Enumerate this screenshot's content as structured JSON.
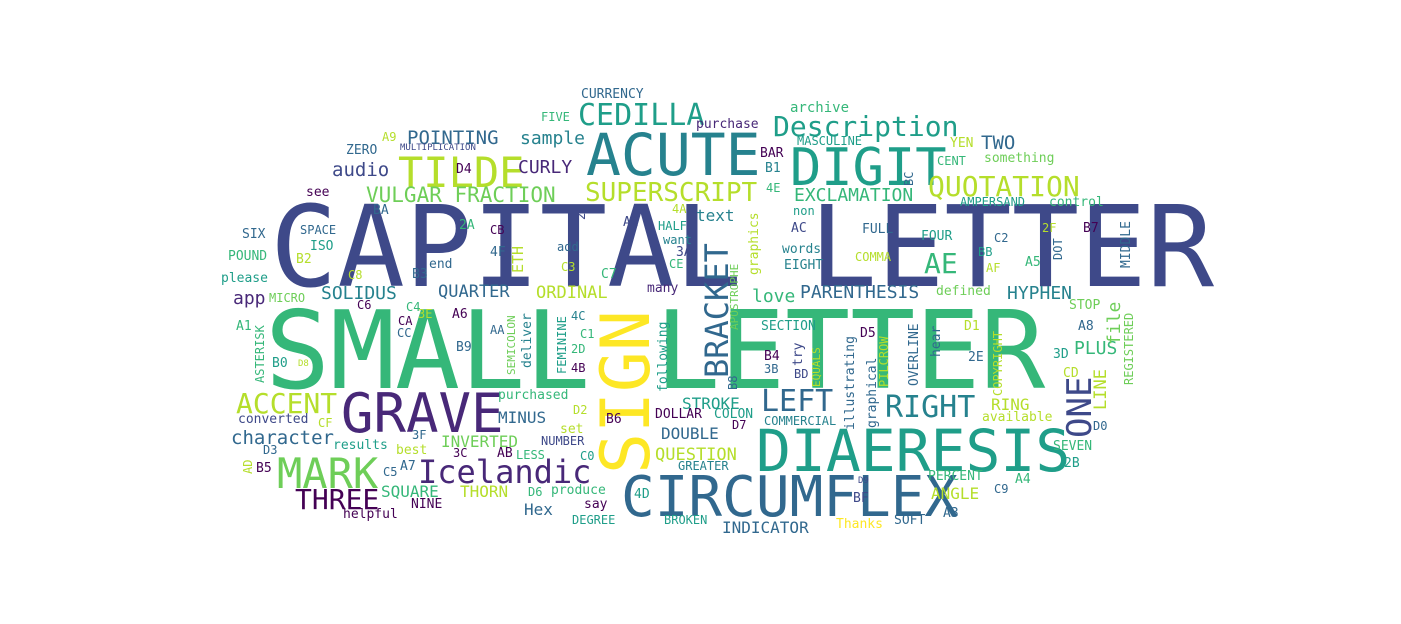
{
  "palette": {
    "dark_purple": "#440154",
    "purple": "#482878",
    "indigo": "#3e4989",
    "blue": "#31688e",
    "teal_blue": "#26828e",
    "teal": "#1f9e89",
    "green": "#35b779",
    "light_green": "#6ece58",
    "lime": "#b5de2b",
    "yellow": "#fde725"
  },
  "words": [
    {
      "text": "CAPITAL LETTER",
      "color": "#3e4989"
    },
    {
      "text": "SMALL LETTER",
      "color": "#35b779"
    },
    {
      "text": "SIGN",
      "color": "#fde725"
    },
    {
      "text": "ACUTE",
      "color": "#26828e"
    },
    {
      "text": "DIGIT",
      "color": "#1f9e89"
    },
    {
      "text": "DIAERESIS",
      "color": "#1f9e89"
    },
    {
      "text": "CIRCUMFLEX",
      "color": "#31688e"
    },
    {
      "text": "GRAVE",
      "color": "#482878"
    },
    {
      "text": "TILDE",
      "color": "#b5de2b"
    },
    {
      "text": "MARK",
      "color": "#6ece58"
    },
    {
      "text": "Icelandic",
      "color": "#482878"
    },
    {
      "text": "BRACKET",
      "color": "#31688e"
    },
    {
      "text": "CEDILLA",
      "color": "#1f9e89"
    },
    {
      "text": "Description",
      "color": "#1f9e89"
    },
    {
      "text": "QUOTATION",
      "color": "#b5de2b"
    },
    {
      "text": "SUPERSCRIPT",
      "color": "#b5de2b"
    },
    {
      "text": "ONE",
      "color": "#3e4989"
    },
    {
      "text": "RIGHT",
      "color": "#26828e"
    },
    {
      "text": "LEFT",
      "color": "#31688e"
    },
    {
      "text": "ACCENT",
      "color": "#b5de2b"
    },
    {
      "text": "THREE",
      "color": "#440154"
    },
    {
      "text": "VULGAR FRACTION",
      "color": "#6ece58"
    },
    {
      "text": "POINTING",
      "color": "#31688e"
    },
    {
      "text": "AE",
      "color": "#35b779"
    },
    {
      "text": "sample",
      "color": "#26828e"
    },
    {
      "text": "CURLY",
      "color": "#482878"
    },
    {
      "text": "audio",
      "color": "#3e4989"
    },
    {
      "text": "TWO",
      "color": "#31688e"
    },
    {
      "text": "EXCLAMATION",
      "color": "#35b779"
    },
    {
      "text": "character",
      "color": "#31688e"
    },
    {
      "text": "PARENTHESIS",
      "color": "#31688e"
    },
    {
      "text": "HYPHEN",
      "color": "#26828e"
    },
    {
      "text": "SOLIDUS",
      "color": "#26828e"
    },
    {
      "text": "QUARTER",
      "color": "#31688e"
    },
    {
      "text": "ORDINAL",
      "color": "#b5de2b"
    },
    {
      "text": "love",
      "color": "#35b779"
    },
    {
      "text": "app",
      "color": "#482878"
    },
    {
      "text": "PLUS",
      "color": "#35b779"
    },
    {
      "text": "file",
      "color": "#6ece58"
    },
    {
      "text": "LINE",
      "color": "#b5de2b"
    },
    {
      "text": "STROKE",
      "color": "#1f9e89"
    },
    {
      "text": "DOUBLE",
      "color": "#31688e"
    },
    {
      "text": "MINUS",
      "color": "#31688e"
    },
    {
      "text": "INVERTED",
      "color": "#6ece58"
    },
    {
      "text": "QUESTION",
      "color": "#b5de2b"
    },
    {
      "text": "SQUARE",
      "color": "#35b779"
    },
    {
      "text": "THORN",
      "color": "#b5de2b"
    },
    {
      "text": "ANGLE",
      "color": "#b5de2b"
    },
    {
      "text": "RING",
      "color": "#b5de2b"
    },
    {
      "text": "Hex",
      "color": "#31688e"
    },
    {
      "text": "INDICATOR",
      "color": "#31688e"
    },
    {
      "text": "ETH",
      "color": "#b5de2b"
    },
    {
      "text": "text",
      "color": "#26828e"
    },
    {
      "text": "CURRENCY",
      "color": "#31688e"
    },
    {
      "text": "archive",
      "color": "#35b779"
    },
    {
      "text": "purchase",
      "color": "#482878"
    },
    {
      "text": "MASCULINE",
      "color": "#1f9e89"
    },
    {
      "text": "FIVE",
      "color": "#35b779"
    },
    {
      "text": "ZERO",
      "color": "#31688e"
    },
    {
      "text": "MULTIPLICATION",
      "color": "#3e4989"
    },
    {
      "text": "A9",
      "color": "#b5de2b"
    },
    {
      "text": "D4",
      "color": "#440154"
    },
    {
      "text": "BAR",
      "color": "#440154"
    },
    {
      "text": "B1",
      "color": "#26828e"
    },
    {
      "text": "4E",
      "color": "#35b779"
    },
    {
      "text": "YEN",
      "color": "#b5de2b"
    },
    {
      "text": "CENT",
      "color": "#35b779"
    },
    {
      "text": "something",
      "color": "#6ece58"
    },
    {
      "text": "see",
      "color": "#440154"
    },
    {
      "text": "BA",
      "color": "#31688e"
    },
    {
      "text": "2C",
      "color": "#3e4989"
    },
    {
      "text": "4A",
      "color": "#b5de2b"
    },
    {
      "text": "graphics",
      "color": "#b5de2b"
    },
    {
      "text": "BC",
      "color": "#31688e"
    },
    {
      "text": "AMPERSAND",
      "color": "#1f9e89"
    },
    {
      "text": "control",
      "color": "#35b779"
    },
    {
      "text": "SIX",
      "color": "#31688e"
    },
    {
      "text": "SPACE",
      "color": "#31688e"
    },
    {
      "text": "2A",
      "color": "#35b779"
    },
    {
      "text": "CB",
      "color": "#440154"
    },
    {
      "text": "A2",
      "color": "#3e4989"
    },
    {
      "text": "HALF",
      "color": "#1f9e89"
    },
    {
      "text": "non",
      "color": "#1f9e89"
    },
    {
      "text": "AC",
      "color": "#3e4989"
    },
    {
      "text": "FULL",
      "color": "#31688e"
    },
    {
      "text": "FOUR",
      "color": "#1f9e89"
    },
    {
      "text": "C2",
      "color": "#31688e"
    },
    {
      "text": "2F",
      "color": "#b5de2b"
    },
    {
      "text": "B7",
      "color": "#440154"
    },
    {
      "text": "ISO",
      "color": "#1f9e89"
    },
    {
      "text": "POUND",
      "color": "#35b779"
    },
    {
      "text": "B2",
      "color": "#b5de2b"
    },
    {
      "text": "add",
      "color": "#31688e"
    },
    {
      "text": "want",
      "color": "#26828e"
    },
    {
      "text": "words",
      "color": "#26828e"
    },
    {
      "text": "EIGHT",
      "color": "#26828e"
    },
    {
      "text": "BB",
      "color": "#1f9e89"
    },
    {
      "text": "DOT",
      "color": "#31688e"
    },
    {
      "text": "MIDDLE",
      "color": "#31688e"
    },
    {
      "text": "please",
      "color": "#1f9e89"
    },
    {
      "text": "end",
      "color": "#31688e"
    },
    {
      "text": "4F",
      "color": "#31688e"
    },
    {
      "text": "3A",
      "color": "#3e4989"
    },
    {
      "text": "CE",
      "color": "#35b779"
    },
    {
      "text": "COMMA",
      "color": "#b5de2b"
    },
    {
      "text": "AF",
      "color": "#b5de2b"
    },
    {
      "text": "A5",
      "color": "#35b779"
    },
    {
      "text": "C8",
      "color": "#b5de2b"
    },
    {
      "text": "B3",
      "color": "#31688e"
    },
    {
      "text": "C3",
      "color": "#b5de2b"
    },
    {
      "text": "C7",
      "color": "#35b779"
    },
    {
      "text": "many",
      "color": "#482878"
    },
    {
      "text": "MICRO",
      "color": "#6ece58"
    },
    {
      "text": "C6",
      "color": "#440154"
    },
    {
      "text": "C4",
      "color": "#35b779"
    },
    {
      "text": "3E",
      "color": "#b5de2b"
    },
    {
      "text": "defined",
      "color": "#6ece58"
    },
    {
      "text": "STOP",
      "color": "#6ece58"
    },
    {
      "text": "A1",
      "color": "#35b779"
    },
    {
      "text": "ASTERISK",
      "color": "#35b779"
    },
    {
      "text": "CA",
      "color": "#440154"
    },
    {
      "text": "CC",
      "color": "#31688e"
    },
    {
      "text": "A6",
      "color": "#440154"
    },
    {
      "text": "AA",
      "color": "#31688e"
    },
    {
      "text": "SEMICOLON",
      "color": "#6ece58"
    },
    {
      "text": "deliver",
      "color": "#26828e"
    },
    {
      "text": "4C",
      "color": "#26828e"
    },
    {
      "text": "C1",
      "color": "#35b779"
    },
    {
      "text": "2D",
      "color": "#35b779"
    },
    {
      "text": "FEMININE",
      "color": "#1f9e89"
    },
    {
      "text": "following",
      "color": "#1f9e89"
    },
    {
      "text": "APOSTROPHE",
      "color": "#6ece58"
    },
    {
      "text": "SECTION",
      "color": "#1f9e89"
    },
    {
      "text": "try",
      "color": "#3e4989"
    },
    {
      "text": "illustrating",
      "color": "#31688e"
    },
    {
      "text": "D5",
      "color": "#440154"
    },
    {
      "text": "PILCROW",
      "color": "#b5de2b"
    },
    {
      "text": "OVERLINE",
      "color": "#31688e"
    },
    {
      "text": "hear",
      "color": "#31688e"
    },
    {
      "text": "D1",
      "color": "#b5de2b"
    },
    {
      "text": "A8",
      "color": "#31688e"
    },
    {
      "text": "REGISTERED",
      "color": "#6ece58"
    },
    {
      "text": "B0",
      "color": "#1f9e89"
    },
    {
      "text": "D8",
      "color": "#b5de2b"
    },
    {
      "text": "B9",
      "color": "#31688e"
    },
    {
      "text": "4B",
      "color": "#440154"
    },
    {
      "text": "B8",
      "color": "#31688e"
    },
    {
      "text": "B4",
      "color": "#440154"
    },
    {
      "text": "3B",
      "color": "#31688e"
    },
    {
      "text": "BD",
      "color": "#3e4989"
    },
    {
      "text": "EQUALS",
      "color": "#b5de2b"
    },
    {
      "text": "graphical",
      "color": "#31688e"
    },
    {
      "text": "2E",
      "color": "#31688e"
    },
    {
      "text": "3D",
      "color": "#1f9e89"
    },
    {
      "text": "COPYRIGHT",
      "color": "#b5de2b"
    },
    {
      "text": "CD",
      "color": "#b5de2b"
    },
    {
      "text": "purchased",
      "color": "#35b779"
    },
    {
      "text": "converted",
      "color": "#3e4989"
    },
    {
      "text": "CF",
      "color": "#b5de2b"
    },
    {
      "text": "D2",
      "color": "#b5de2b"
    },
    {
      "text": "B6",
      "color": "#440154"
    },
    {
      "text": "DOLLAR",
      "color": "#440154"
    },
    {
      "text": "COLON",
      "color": "#1f9e89"
    },
    {
      "text": "D7",
      "color": "#440154"
    },
    {
      "text": "COMMERCIAL",
      "color": "#26828e"
    },
    {
      "text": "available",
      "color": "#b5de2b"
    },
    {
      "text": "D0",
      "color": "#31688e"
    },
    {
      "text": "3F",
      "color": "#31688e"
    },
    {
      "text": "results",
      "color": "#1f9e89"
    },
    {
      "text": "set",
      "color": "#b5de2b"
    },
    {
      "text": "NUMBER",
      "color": "#3e4989"
    },
    {
      "text": "SEVEN",
      "color": "#35b779"
    },
    {
      "text": "D3",
      "color": "#31688e"
    },
    {
      "text": "best",
      "color": "#b5de2b"
    },
    {
      "text": "3C",
      "color": "#440154"
    },
    {
      "text": "AB",
      "color": "#440154"
    },
    {
      "text": "LESS",
      "color": "#35b779"
    },
    {
      "text": "C0",
      "color": "#1f9e89"
    },
    {
      "text": "2B",
      "color": "#1f9e89"
    },
    {
      "text": "AD",
      "color": "#b5de2b"
    },
    {
      "text": "B5",
      "color": "#440154"
    },
    {
      "text": "C5",
      "color": "#31688e"
    },
    {
      "text": "A7",
      "color": "#31688e"
    },
    {
      "text": "GREATER",
      "color": "#26828e"
    },
    {
      "text": "PERCENT",
      "color": "#35b779"
    },
    {
      "text": "A4",
      "color": "#35b779"
    },
    {
      "text": "D9",
      "color": "#3e4989"
    },
    {
      "text": "C9",
      "color": "#31688e"
    },
    {
      "text": "helpful",
      "color": "#440154"
    },
    {
      "text": "NINE",
      "color": "#440154"
    },
    {
      "text": "D6",
      "color": "#35b779"
    },
    {
      "text": "produce",
      "color": "#35b779"
    },
    {
      "text": "4D",
      "color": "#1f9e89"
    },
    {
      "text": "say",
      "color": "#440154"
    },
    {
      "text": "DEGREE",
      "color": "#1f9e89"
    },
    {
      "text": "BROKEN",
      "color": "#1f9e89"
    },
    {
      "text": "BF",
      "color": "#3e4989"
    },
    {
      "text": "Thanks",
      "color": "#fde725"
    },
    {
      "text": "SOFT",
      "color": "#31688e"
    },
    {
      "text": "A3",
      "color": "#31688e"
    }
  ]
}
